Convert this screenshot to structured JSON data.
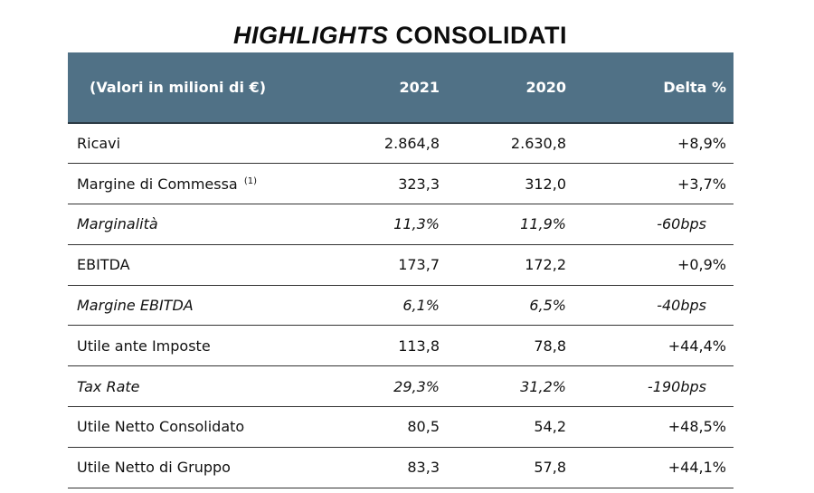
{
  "title": {
    "italic_part": "HIGHLIGHTS",
    "regular_part": "CONSOLIDATI"
  },
  "header": {
    "label": "(Valori in milioni di €)",
    "col_2021": "2021",
    "col_2020": "2020",
    "col_delta": "Delta %"
  },
  "rows": [
    {
      "label": "Ricavi",
      "note": "",
      "v2021": "2.864,8",
      "v2020": "2.630,8",
      "delta": "+8,9%"
    },
    {
      "label": "Margine di Commessa",
      "note": "(1)",
      "v2021": "323,3",
      "v2020": "312,0",
      "delta": "+3,7%"
    },
    {
      "label": "Marginalità",
      "note": "",
      "v2021": "11,3%",
      "v2020": "11,9%",
      "delta": "-60bps"
    },
    {
      "label": "EBITDA",
      "note": "",
      "v2021": "173,7",
      "v2020": "172,2",
      "delta": "+0,9%"
    },
    {
      "label": "Margine EBITDA",
      "note": "",
      "v2021": "6,1%",
      "v2020": "6,5%",
      "delta": "-40bps"
    },
    {
      "label": "Utile ante Imposte",
      "note": "",
      "v2021": "113,8",
      "v2020": "78,8",
      "delta": "+44,4%"
    },
    {
      "label": "Tax Rate",
      "note": "",
      "v2021": "29,3%",
      "v2020": "31,2%",
      "delta": "-190bps"
    },
    {
      "label": "Utile Netto Consolidato",
      "note": "",
      "v2021": "80,5",
      "v2020": "54,2",
      "delta": "+48,5%"
    },
    {
      "label": "Utile Netto di Gruppo",
      "note": "",
      "v2021": "83,3",
      "v2020": "57,8",
      "delta": "+44,1%"
    }
  ],
  "colors": {
    "header_bg": "#507186",
    "header_text": "#ffffff",
    "row_border": "#333333"
  }
}
